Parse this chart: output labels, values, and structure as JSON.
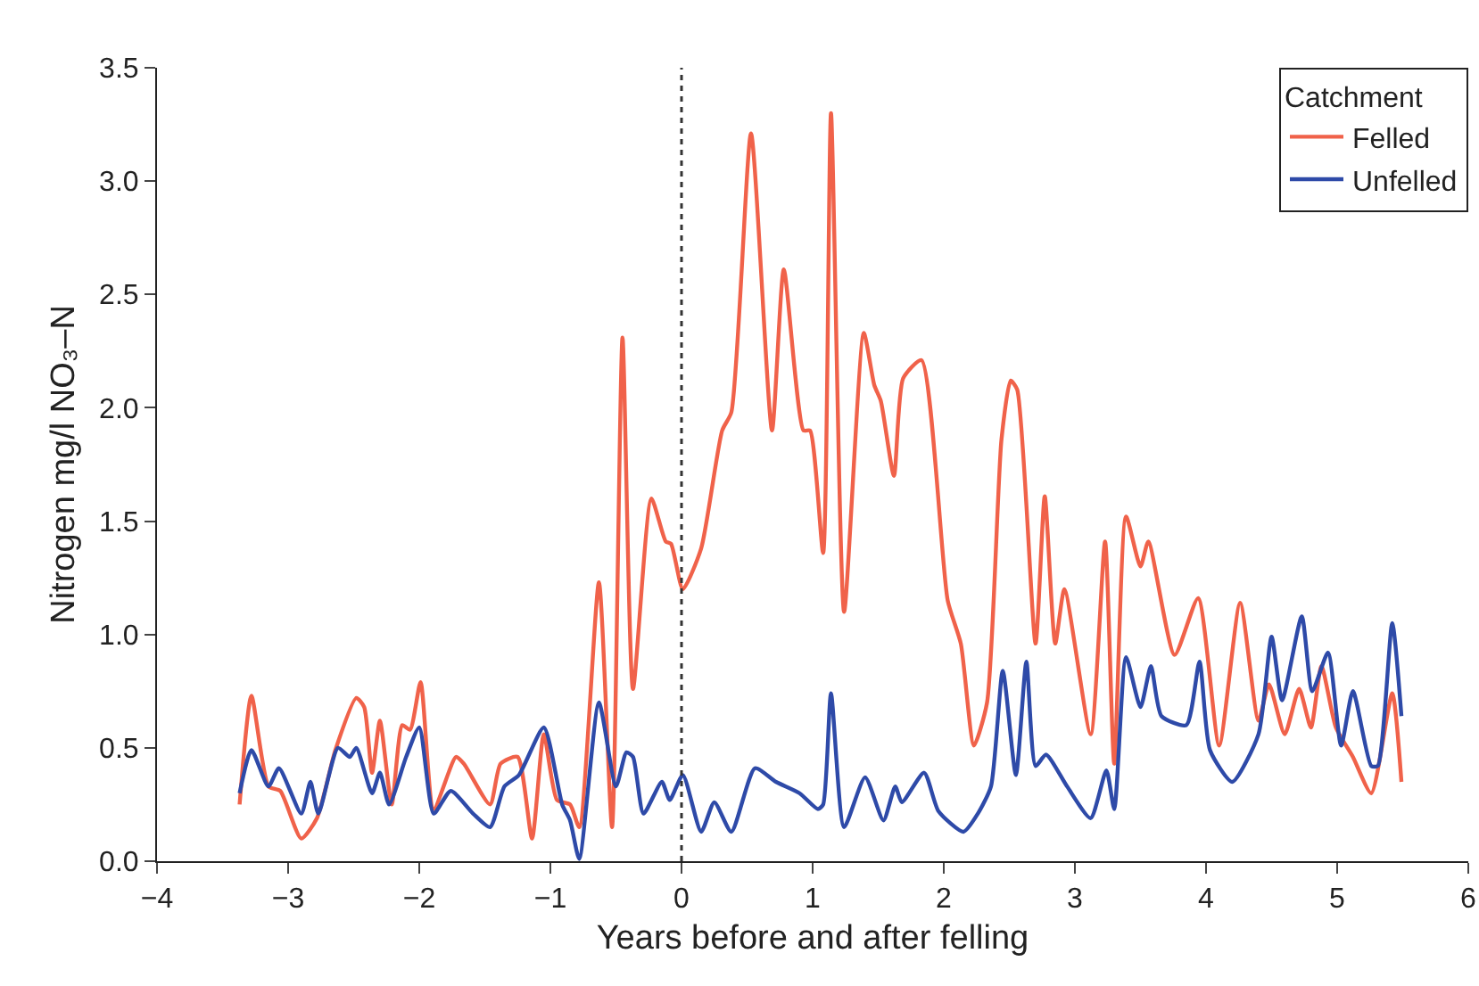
{
  "chart_data": {
    "type": "line",
    "xlabel": "Years before and after felling",
    "ylabel": "Nitrogen mg/l NO₃–N",
    "legend_title": "Catchment",
    "legend": "top right",
    "grid": false,
    "line_style": "solid",
    "marker": "none",
    "xlim": [
      -4,
      6
    ],
    "xticks": [
      {
        "value": -4,
        "label": "−4"
      },
      {
        "value": -3,
        "label": "−3"
      },
      {
        "value": -2,
        "label": "−2"
      },
      {
        "value": -1,
        "label": "−1"
      },
      0,
      1,
      2,
      3,
      4,
      5,
      6
    ],
    "ylim": [
      0,
      3.5
    ],
    "yticks": [
      {
        "value": 0,
        "label": "0.0"
      },
      {
        "value": 0.5,
        "label": "0.5"
      },
      {
        "value": 1,
        "label": "1.0"
      },
      {
        "value": 1.5,
        "label": "1.5"
      },
      {
        "value": 2,
        "label": "2.0"
      },
      {
        "value": 2.5,
        "label": "2.5"
      },
      {
        "value": 3,
        "label": "3.0"
      },
      {
        "value": 3.5,
        "label": "3.5"
      }
    ],
    "ref_lines": [
      {
        "axis": "x",
        "value": 0,
        "label": null,
        "color": "#333333",
        "line_style": "dotted"
      }
    ],
    "series": [
      {
        "name": "Felled",
        "color": "#f0624a",
        "x": [
          -3.37,
          -3.28,
          -3.15,
          -3.06,
          -2.9,
          -2.78,
          -2.64,
          -2.48,
          -2.42,
          -2.36,
          -2.3,
          -2.21,
          -2.13,
          -2.07,
          -1.99,
          -1.89,
          -1.72,
          -1.66,
          -1.46,
          -1.38,
          -1.25,
          -1.14,
          -1.05,
          -0.95,
          -0.85,
          -0.78,
          -0.63,
          -0.53,
          -0.45,
          -0.37,
          -0.23,
          -0.12,
          -0.08,
          0.01,
          0.15,
          0.31,
          0.38,
          0.53,
          0.69,
          0.78,
          0.93,
          0.98,
          1.08,
          1.14,
          1.24,
          1.39,
          1.47,
          1.52,
          1.62,
          1.69,
          1.83,
          2.03,
          2.13,
          2.23,
          2.33,
          2.44,
          2.51,
          2.56,
          2.7,
          2.77,
          2.85,
          2.92,
          3.12,
          3.23,
          3.3,
          3.39,
          3.5,
          3.56,
          3.76,
          3.94,
          4.1,
          4.26,
          4.4,
          4.48,
          4.6,
          4.71,
          4.8,
          4.88,
          4.99,
          5.12,
          5.26,
          5.42,
          5.49
        ],
        "values": [
          0.25,
          0.73,
          0.33,
          0.31,
          0.1,
          0.19,
          0.49,
          0.72,
          0.68,
          0.39,
          0.62,
          0.25,
          0.6,
          0.58,
          0.79,
          0.23,
          0.46,
          0.43,
          0.25,
          0.43,
          0.46,
          0.1,
          0.56,
          0.27,
          0.25,
          0.15,
          1.23,
          0.15,
          2.31,
          0.76,
          1.6,
          1.41,
          1.4,
          1.2,
          1.38,
          1.9,
          1.98,
          3.21,
          1.9,
          2.61,
          1.9,
          1.9,
          1.36,
          3.3,
          1.1,
          2.33,
          2.1,
          2.03,
          1.7,
          2.13,
          2.21,
          1.15,
          0.96,
          0.51,
          0.7,
          1.86,
          2.12,
          2.08,
          0.96,
          1.61,
          0.96,
          1.2,
          0.56,
          1.41,
          0.43,
          1.52,
          1.3,
          1.41,
          0.91,
          1.16,
          0.51,
          1.14,
          0.62,
          0.78,
          0.56,
          0.76,
          0.59,
          0.86,
          0.59,
          0.46,
          0.3,
          0.74,
          0.35
        ]
      },
      {
        "name": "Unfelled",
        "color": "#2e4aa8",
        "x": [
          -3.37,
          -3.28,
          -3.15,
          -3.07,
          -2.9,
          -2.83,
          -2.77,
          -2.62,
          -2.53,
          -2.48,
          -2.36,
          -2.3,
          -2.23,
          -2.1,
          -2.0,
          -1.89,
          -1.76,
          -1.59,
          -1.46,
          -1.35,
          -1.24,
          -1.05,
          -0.91,
          -0.85,
          -0.78,
          -0.63,
          -0.5,
          -0.42,
          -0.37,
          -0.29,
          -0.15,
          -0.09,
          0.01,
          0.15,
          0.25,
          0.38,
          0.56,
          0.72,
          0.9,
          1.04,
          1.08,
          1.14,
          1.24,
          1.4,
          1.54,
          1.63,
          1.68,
          1.85,
          1.96,
          2.15,
          2.26,
          2.36,
          2.45,
          2.55,
          2.63,
          2.7,
          2.78,
          2.94,
          3.12,
          3.24,
          3.3,
          3.39,
          3.5,
          3.58,
          3.66,
          3.85,
          3.95,
          4.03,
          4.2,
          4.4,
          4.5,
          4.58,
          4.73,
          4.81,
          4.93,
          5.03,
          5.12,
          5.26,
          5.31,
          5.42,
          5.49
        ],
        "values": [
          0.3,
          0.49,
          0.33,
          0.41,
          0.21,
          0.35,
          0.21,
          0.5,
          0.46,
          0.5,
          0.3,
          0.39,
          0.25,
          0.46,
          0.59,
          0.21,
          0.31,
          0.21,
          0.15,
          0.33,
          0.38,
          0.59,
          0.25,
          0.18,
          0.01,
          0.7,
          0.33,
          0.48,
          0.46,
          0.21,
          0.35,
          0.27,
          0.38,
          0.13,
          0.26,
          0.13,
          0.41,
          0.35,
          0.3,
          0.23,
          0.25,
          0.74,
          0.15,
          0.37,
          0.18,
          0.33,
          0.26,
          0.39,
          0.22,
          0.13,
          0.21,
          0.33,
          0.84,
          0.38,
          0.88,
          0.42,
          0.47,
          0.33,
          0.19,
          0.4,
          0.23,
          0.9,
          0.68,
          0.86,
          0.64,
          0.6,
          0.88,
          0.49,
          0.35,
          0.56,
          0.99,
          0.71,
          1.08,
          0.75,
          0.92,
          0.51,
          0.75,
          0.42,
          0.42,
          1.05,
          0.64
        ]
      }
    ]
  }
}
